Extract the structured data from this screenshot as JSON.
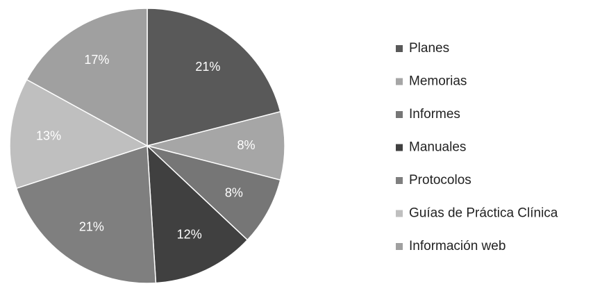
{
  "chart_data": {
    "type": "pie",
    "categories": [
      "Planes",
      "Memorias",
      "Informes",
      "Manuales",
      "Protocolos",
      "Guías de Práctica Clínica",
      "Información web"
    ],
    "values": [
      21,
      8,
      8,
      12,
      21,
      13,
      17
    ],
    "value_labels": [
      "21%",
      "8%",
      "8%",
      "12%",
      "21%",
      "13%",
      "17%"
    ],
    "colors": [
      "#595959",
      "#a6a6a6",
      "#767676",
      "#404040",
      "#7f7f7f",
      "#bfbfbf",
      "#a0a0a0"
    ],
    "legend": "right"
  }
}
